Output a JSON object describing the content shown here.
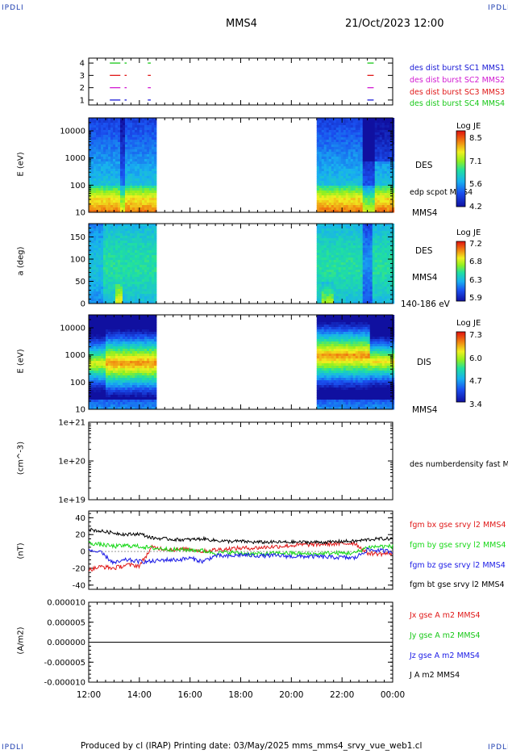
{
  "page": {
    "corner_left_top": "IPDLI",
    "corner_right_top": "IPDLI",
    "corner_left_bottom": "IPDLI",
    "corner_right_bottom": "IPDLI",
    "spacecraft": "MMS4",
    "datetime": "21/Oct/2023 12:00",
    "footer": "Produced by cl (IRAP)   Printing date: 03/May/2025   mms_mms4_srvy_vue_web1.cl"
  },
  "colors": {
    "sc1": "#1a1ad6",
    "sc2": "#d21ad2",
    "sc3": "#e01818",
    "sc4": "#18c818",
    "bx": "#e01818",
    "by": "#18d818",
    "bz": "#1a1ae6",
    "bt": "#000000"
  },
  "chart_data": [
    {
      "type": "timeline",
      "name": "burst_availability",
      "yticks": [
        "1",
        "2",
        "3",
        "4"
      ],
      "xlim": [
        "12:00",
        "00:00"
      ],
      "labels": [
        {
          "text": "des dist burst SC1 MMS1",
          "color": "#1a1ad6"
        },
        {
          "text": "des dist burst SC2 MMS2",
          "color": "#d21ad2"
        },
        {
          "text": "des dist burst SC3 MMS3",
          "color": "#e01818"
        },
        {
          "text": "des dist burst SC4 MMS4",
          "color": "#18c818"
        }
      ],
      "intervals": [
        {
          "start": "12:50",
          "end": "13:15"
        },
        {
          "start": "13:25",
          "end": "13:30"
        },
        {
          "start": "14:20",
          "end": "14:27"
        },
        {
          "start": "23:00",
          "end": "23:15"
        }
      ]
    },
    {
      "type": "heatmap",
      "name": "des_energy_spectrogram",
      "ylabel": "E (eV)",
      "yscale": "log",
      "ylim": [
        10,
        30000
      ],
      "yticks": [
        "10",
        "100",
        "1000",
        "10000"
      ],
      "xlim": [
        "12:00",
        "00:00"
      ],
      "data_intervals": [
        [
          "12:00",
          "14:37"
        ],
        [
          "21:00",
          "00:00"
        ]
      ],
      "side_label": "DES",
      "extra_labels": [
        "edp scpot MMS4",
        "MMS4"
      ],
      "colorbar": {
        "title": "Log JE",
        "ticks": [
          "8.5",
          "7.1",
          "5.6",
          "4.2"
        ]
      }
    },
    {
      "type": "heatmap",
      "name": "des_pitch_angle",
      "ylabel": "a (deg)",
      "ylim": [
        0,
        180
      ],
      "yticks": [
        "0",
        "50",
        "100",
        "150"
      ],
      "xlim": [
        "12:00",
        "00:00"
      ],
      "data_intervals": [
        [
          "12:00",
          "14:37"
        ],
        [
          "21:00",
          "00:00"
        ]
      ],
      "side_label": "DES",
      "extra_labels": [
        "MMS4",
        "140-186 eV"
      ],
      "colorbar": {
        "title": "Log JE",
        "ticks": [
          "7.2",
          "6.8",
          "6.3",
          "5.9"
        ]
      }
    },
    {
      "type": "heatmap",
      "name": "dis_energy_spectrogram",
      "ylabel": "E (eV)",
      "yscale": "log",
      "ylim": [
        10,
        30000
      ],
      "yticks": [
        "10",
        "100",
        "1000",
        "10000"
      ],
      "xlim": [
        "12:00",
        "00:00"
      ],
      "data_intervals": [
        [
          "12:00",
          "14:37"
        ],
        [
          "21:00",
          "00:00"
        ]
      ],
      "side_label": "DIS",
      "extra_labels": [
        "MMS4"
      ],
      "colorbar": {
        "title": "Log JE",
        "ticks": [
          "7.3",
          "6.0",
          "4.7",
          "3.4"
        ]
      }
    },
    {
      "type": "line",
      "name": "des_numberdensity",
      "ylabel": "(cm^-3)",
      "yscale": "log",
      "yticks": [
        "1e+19",
        "1e+20",
        "1e+21"
      ],
      "xlim": [
        "12:00",
        "00:00"
      ],
      "series": [
        {
          "name": "des numberdensity fast M",
          "values": []
        }
      ]
    },
    {
      "type": "line",
      "name": "fgm_b_gse",
      "ylabel": "(nT)",
      "ylim": [
        -45,
        48
      ],
      "yticks": [
        "-40",
        "-20",
        "0",
        "20",
        "40"
      ],
      "xlim": [
        "12:00",
        "00:00"
      ],
      "x": [
        "12:00",
        "12:30",
        "13:00",
        "13:30",
        "14:00",
        "14:30",
        "15:00",
        "15:30",
        "16:00",
        "16:30",
        "17:00",
        "17:30",
        "18:00",
        "18:30",
        "19:00",
        "19:30",
        "20:00",
        "20:30",
        "21:00",
        "21:30",
        "22:00",
        "22:30",
        "23:00",
        "23:30",
        "00:00"
      ],
      "series": [
        {
          "name": "fgm bx gse srvy l2 MMS4",
          "color": "#e01818",
          "values": [
            -22,
            -18,
            -20,
            -16,
            -17,
            5,
            3,
            2,
            3,
            0,
            2,
            3,
            4,
            4,
            5,
            6,
            7,
            8,
            8,
            9,
            9,
            10,
            -2,
            -3,
            -2
          ]
        },
        {
          "name": "fgm by gse srvy l2 MMS4",
          "color": "#18d818",
          "values": [
            10,
            8,
            6,
            7,
            6,
            4,
            3,
            2,
            2,
            1,
            -2,
            -1,
            -2,
            -3,
            -3,
            -2,
            -2,
            -3,
            -3,
            -2,
            -2,
            -2,
            5,
            6,
            6
          ]
        },
        {
          "name": "fgm bz gse srvy l2 MMS4",
          "color": "#1a1ae6",
          "values": [
            2,
            -2,
            -14,
            -10,
            -12,
            -12,
            -10,
            -10,
            -8,
            -12,
            -5,
            -6,
            -4,
            -5,
            -5,
            -5,
            -6,
            -6,
            -6,
            -7,
            -7,
            -8,
            2,
            1,
            0
          ]
        },
        {
          "name": "fgm bt gse srvy l2 MMS4",
          "color": "#000000",
          "values": [
            26,
            24,
            22,
            20,
            21,
            16,
            15,
            14,
            14,
            15,
            13,
            12,
            12,
            11,
            11,
            11,
            11,
            11,
            11,
            11,
            12,
            12,
            14,
            15,
            15
          ]
        }
      ]
    },
    {
      "type": "line",
      "name": "current_density",
      "ylabel": "(A/m2)",
      "ylim": [
        -1e-05,
        1e-05
      ],
      "yticks": [
        "-0.000010",
        "-0.000005",
        "0.000000",
        "0.000005",
        "0.000010"
      ],
      "xlim": [
        "12:00",
        "00:00"
      ],
      "xticks": [
        "12:00",
        "14:00",
        "16:00",
        "18:00",
        "20:00",
        "22:00",
        "00:00"
      ],
      "series": [
        {
          "name": "Jx gse A m2 MMS4",
          "color": "#e01818",
          "values": [
            0,
            0
          ]
        },
        {
          "name": "Jy gse A m2 MMS4",
          "color": "#18c818",
          "values": [
            0,
            0
          ]
        },
        {
          "name": "Jz gse A m2 MMS4",
          "color": "#1a1ae6",
          "values": [
            0,
            0
          ]
        },
        {
          "name": "J A m2 MMS4",
          "color": "#000000",
          "values": [
            0,
            0
          ]
        }
      ]
    }
  ]
}
